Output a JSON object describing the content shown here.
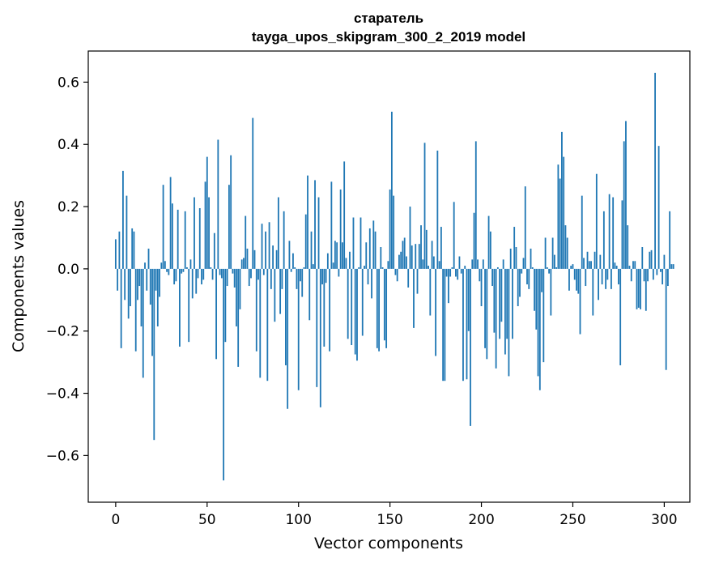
{
  "chart_data": {
    "type": "bar",
    "title": "старатель",
    "subtitle": "tayga_upos_skipgram_300_2_2019 model",
    "xlabel": "Vector components",
    "ylabel": "Components values",
    "xlim": [
      -15,
      314
    ],
    "ylim": [
      -0.75,
      0.7
    ],
    "xticks": [
      0,
      50,
      100,
      150,
      200,
      250,
      300
    ],
    "xtick_labels": [
      "0",
      "50",
      "100",
      "150",
      "200",
      "250",
      "300"
    ],
    "yticks": [
      -0.6,
      -0.4,
      -0.2,
      0.0,
      0.2,
      0.4,
      0.6
    ],
    "ytick_labels": [
      "−0.6",
      "−0.4",
      "−0.2",
      "0.0",
      "0.2",
      "0.4",
      "0.6"
    ],
    "grid": false,
    "bar_color": "#1f77b4",
    "values": [
      0.095,
      -0.07,
      0.12,
      -0.255,
      0.315,
      -0.1,
      0.235,
      -0.16,
      -0.12,
      0.13,
      0.12,
      -0.265,
      -0.1,
      -0.055,
      -0.185,
      -0.35,
      0.02,
      -0.07,
      0.065,
      -0.115,
      -0.28,
      -0.55,
      -0.07,
      -0.185,
      -0.09,
      0.02,
      0.27,
      0.025,
      -0.01,
      -0.02,
      0.295,
      0.21,
      -0.05,
      -0.04,
      0.19,
      -0.25,
      -0.015,
      -0.01,
      0.185,
      0.005,
      -0.235,
      0.03,
      -0.095,
      0.23,
      -0.08,
      -0.03,
      0.195,
      -0.05,
      -0.035,
      0.28,
      0.36,
      0.23,
      0.005,
      -0.035,
      0.115,
      -0.29,
      0.415,
      -0.02,
      -0.03,
      -0.68,
      -0.235,
      -0.055,
      0.27,
      0.365,
      -0.015,
      -0.06,
      -0.185,
      -0.315,
      -0.13,
      0.03,
      0.035,
      0.17,
      0.065,
      -0.055,
      -0.03,
      0.485,
      0.06,
      -0.265,
      -0.035,
      -0.35,
      0.145,
      -0.02,
      0.12,
      -0.36,
      0.15,
      -0.065,
      0.075,
      -0.17,
      0.06,
      0.23,
      -0.145,
      -0.065,
      0.185,
      -0.31,
      -0.45,
      0.09,
      -0.01,
      0.05,
      0.005,
      -0.065,
      -0.39,
      -0.04,
      -0.09,
      0.005,
      0.175,
      0.3,
      -0.165,
      0.12,
      0.015,
      0.285,
      -0.38,
      0.23,
      -0.445,
      -0.05,
      -0.25,
      -0.045,
      0.05,
      -0.265,
      0.28,
      0.02,
      0.09,
      0.085,
      -0.025,
      0.255,
      0.085,
      0.345,
      0.035,
      -0.225,
      0.055,
      -0.245,
      0.165,
      -0.275,
      -0.295,
      0.005,
      0.165,
      -0.215,
      0.01,
      0.085,
      -0.05,
      0.13,
      -0.095,
      0.155,
      0.12,
      -0.255,
      -0.265,
      0.07,
      0.005,
      -0.23,
      -0.255,
      0.025,
      0.255,
      0.505,
      0.235,
      -0.02,
      -0.04,
      0.045,
      0.055,
      0.09,
      0.1,
      0.04,
      -0.06,
      0.2,
      0.075,
      -0.19,
      0.08,
      -0.08,
      0.08,
      0.14,
      0.03,
      0.405,
      0.125,
      0.01,
      -0.15,
      0.09,
      0.04,
      -0.28,
      0.38,
      0.025,
      0.135,
      -0.36,
      -0.36,
      -0.025,
      -0.11,
      -0.025,
      0.005,
      0.215,
      -0.025,
      -0.035,
      0.04,
      -0.015,
      -0.36,
      0.01,
      -0.355,
      -0.2,
      -0.505,
      0.03,
      0.18,
      0.41,
      0.03,
      -0.04,
      -0.12,
      0.03,
      -0.255,
      -0.29,
      0.17,
      0.12,
      -0.055,
      -0.205,
      -0.32,
      0.005,
      -0.225,
      -0.17,
      0.03,
      -0.275,
      -0.225,
      -0.345,
      0.065,
      -0.225,
      0.135,
      0.07,
      -0.12,
      -0.09,
      -0.015,
      0.035,
      0.265,
      -0.05,
      -0.065,
      0.065,
      0.005,
      -0.135,
      -0.195,
      -0.345,
      -0.39,
      -0.075,
      -0.3,
      0.1,
      0.005,
      -0.015,
      -0.15,
      0.1,
      0.045,
      0.005,
      0.335,
      0.29,
      0.44,
      0.36,
      0.14,
      0.1,
      -0.07,
      0.01,
      0.015,
      -0.035,
      -0.07,
      -0.08,
      -0.21,
      0.235,
      0.035,
      -0.055,
      0.055,
      0.025,
      0.025,
      -0.15,
      0.055,
      0.305,
      -0.1,
      0.045,
      -0.05,
      0.185,
      -0.065,
      -0.035,
      0.24,
      -0.065,
      0.23,
      0.02,
      0.01,
      -0.05,
      -0.31,
      0.22,
      0.41,
      0.475,
      0.14,
      0.01,
      -0.04,
      0.025,
      0.025,
      -0.13,
      -0.125,
      -0.13,
      0.07,
      -0.04,
      -0.135,
      -0.04,
      0.055,
      0.06,
      -0.035,
      0.63,
      -0.02,
      0.395,
      -0.01,
      -0.05,
      0.045,
      -0.325,
      -0.055,
      0.185,
      0.015,
      0.015
    ]
  }
}
